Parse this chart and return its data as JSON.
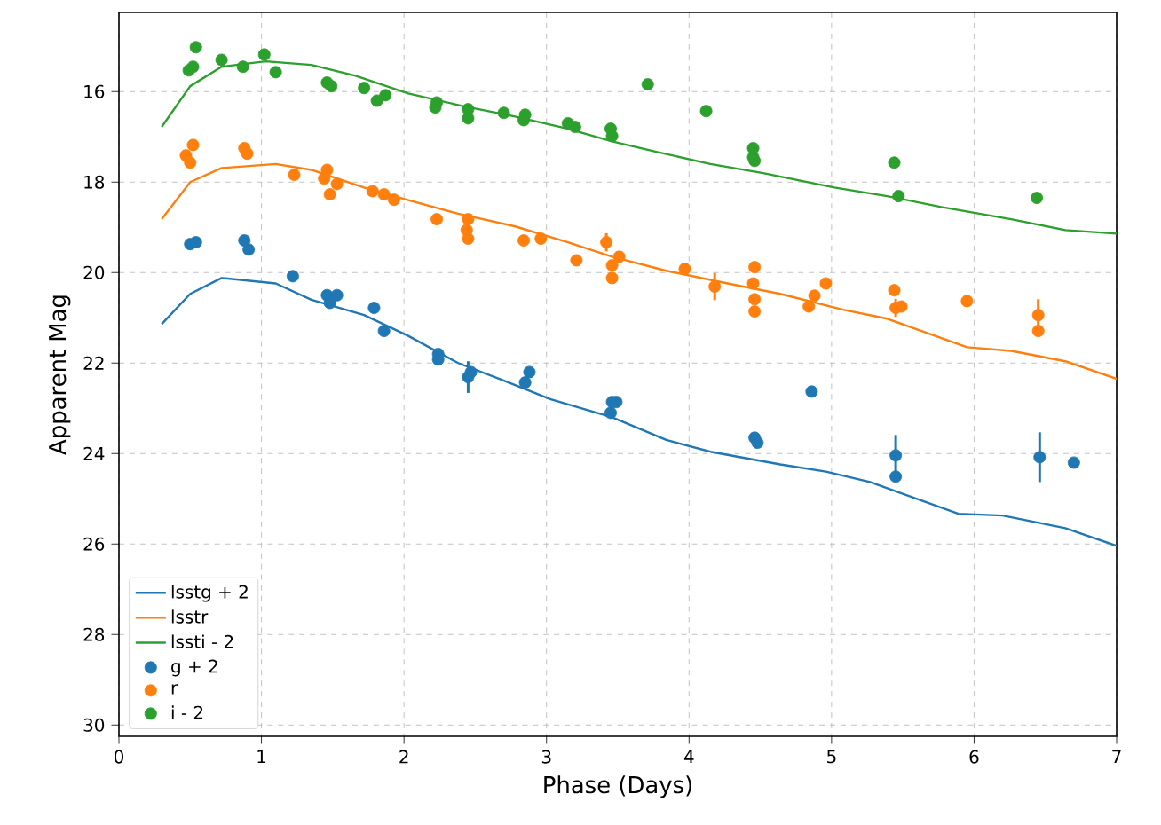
{
  "chart_data": {
    "type": "scatter",
    "xlabel": "Phase (Days)",
    "ylabel": "Apparent Mag",
    "xlim": [
      0,
      7
    ],
    "ylim": [
      30.25,
      14.25
    ],
    "xticks": [
      0,
      1,
      2,
      3,
      4,
      5,
      6,
      7
    ],
    "yticks": [
      16,
      18,
      20,
      22,
      24,
      26,
      28,
      30
    ],
    "grid": true,
    "legend": "bottom left",
    "series": [
      {
        "name": "lsstg + 2",
        "type": "line",
        "marker": "none",
        "color": "#1f77b4",
        "x": [
          0.3,
          0.5,
          0.72,
          1.1,
          1.35,
          1.72,
          2.03,
          2.38,
          2.71,
          3.03,
          3.46,
          3.84,
          4.15,
          4.64,
          4.96,
          5.27,
          5.89,
          6.2,
          6.64,
          7.0
        ],
        "values": [
          21.14,
          20.47,
          20.12,
          20.24,
          20.6,
          20.94,
          21.4,
          22.0,
          22.4,
          22.8,
          23.2,
          23.7,
          23.96,
          24.24,
          24.4,
          24.63,
          25.33,
          25.37,
          25.65,
          26.04
        ]
      },
      {
        "name": "lsstr",
        "type": "line",
        "marker": "none",
        "color": "#ff7f0e",
        "x": [
          0.3,
          0.5,
          0.72,
          1.1,
          1.35,
          1.72,
          2.03,
          2.38,
          2.78,
          3.15,
          3.46,
          3.84,
          4.27,
          4.64,
          5.08,
          5.39,
          5.64,
          5.95,
          6.26,
          6.64,
          7.0
        ],
        "values": [
          18.82,
          18.0,
          17.69,
          17.6,
          17.73,
          18.12,
          18.4,
          18.7,
          18.98,
          19.33,
          19.65,
          19.96,
          20.24,
          20.47,
          20.82,
          21.02,
          21.3,
          21.65,
          21.73,
          21.96,
          22.35
        ]
      },
      {
        "name": "lssti - 2",
        "type": "line",
        "marker": "none",
        "color": "#2ca02c",
        "x": [
          0.3,
          0.5,
          0.72,
          1.03,
          1.35,
          1.66,
          2.03,
          2.4,
          2.78,
          3.15,
          3.46,
          3.77,
          4.15,
          4.52,
          5.02,
          5.39,
          5.77,
          6.26,
          6.64,
          7.0
        ],
        "values": [
          16.78,
          15.88,
          15.45,
          15.33,
          15.41,
          15.65,
          16.04,
          16.31,
          16.55,
          16.82,
          17.1,
          17.33,
          17.6,
          17.8,
          18.12,
          18.31,
          18.55,
          18.82,
          19.06,
          19.14
        ]
      },
      {
        "name": "g + 2",
        "marker": "circle",
        "color": "#1f77b4",
        "x": [
          0.5,
          0.54,
          0.88,
          0.91,
          1.22,
          1.46,
          1.48,
          1.53,
          1.79,
          1.86,
          2.24,
          2.24,
          2.47,
          2.45,
          2.88,
          2.85,
          3.46,
          3.45,
          3.49,
          4.46,
          4.48,
          4.86,
          5.45,
          5.45,
          6.46,
          6.7
        ],
        "values": [
          19.37,
          19.33,
          19.29,
          19.49,
          20.08,
          20.5,
          20.67,
          20.5,
          20.78,
          21.29,
          21.8,
          21.92,
          22.2,
          22.31,
          22.2,
          22.43,
          22.86,
          23.1,
          22.86,
          23.65,
          23.76,
          22.63,
          24.04,
          24.51,
          24.08,
          24.2
        ],
        "errors": [
          null,
          null,
          null,
          null,
          null,
          null,
          null,
          null,
          null,
          null,
          null,
          null,
          null,
          0.35,
          null,
          null,
          null,
          null,
          null,
          null,
          null,
          null,
          0.45,
          null,
          0.55,
          null
        ]
      },
      {
        "name": "r",
        "marker": "circle",
        "color": "#ff7f0e",
        "x": [
          0.47,
          0.5,
          0.52,
          0.88,
          0.9,
          1.23,
          1.46,
          1.44,
          1.48,
          1.53,
          1.78,
          1.86,
          1.93,
          2.23,
          2.45,
          2.44,
          2.45,
          2.84,
          2.96,
          3.21,
          3.42,
          3.46,
          3.46,
          3.51,
          3.97,
          4.18,
          4.46,
          4.45,
          4.46,
          4.46,
          4.84,
          4.88,
          4.96,
          5.44,
          5.45,
          5.49,
          5.95,
          6.45,
          6.45
        ],
        "values": [
          17.41,
          17.57,
          17.18,
          17.25,
          17.37,
          17.84,
          17.73,
          17.92,
          18.27,
          18.04,
          18.2,
          18.27,
          18.39,
          18.82,
          18.82,
          19.06,
          19.25,
          19.29,
          19.25,
          19.73,
          19.33,
          19.84,
          20.12,
          19.65,
          19.92,
          20.31,
          19.88,
          20.24,
          20.59,
          20.86,
          20.75,
          20.51,
          20.24,
          20.39,
          20.78,
          20.75,
          20.63,
          20.94,
          21.29
        ],
        "errors": [
          null,
          null,
          null,
          null,
          null,
          null,
          null,
          null,
          null,
          null,
          null,
          null,
          null,
          null,
          null,
          null,
          null,
          null,
          null,
          null,
          0.2,
          null,
          null,
          null,
          null,
          0.3,
          null,
          null,
          null,
          null,
          null,
          null,
          null,
          null,
          0.2,
          null,
          null,
          0.35,
          null
        ]
      },
      {
        "name": "i - 2",
        "marker": "circle",
        "color": "#2ca02c",
        "x": [
          0.49,
          0.52,
          0.54,
          0.72,
          0.87,
          1.02,
          1.1,
          1.46,
          1.49,
          1.72,
          1.81,
          1.87,
          2.22,
          2.23,
          2.45,
          2.45,
          2.7,
          2.84,
          2.85,
          3.15,
          3.2,
          3.45,
          3.46,
          3.71,
          4.12,
          4.45,
          4.45,
          4.46,
          5.44,
          5.47,
          6.44
        ],
        "values": [
          15.53,
          15.45,
          15.02,
          15.3,
          15.45,
          15.18,
          15.57,
          15.8,
          15.88,
          15.92,
          16.2,
          16.08,
          16.35,
          16.24,
          16.39,
          16.59,
          16.47,
          16.63,
          16.51,
          16.7,
          16.78,
          16.82,
          16.98,
          15.84,
          16.43,
          17.25,
          17.45,
          17.53,
          17.57,
          18.31,
          18.35
        ]
      }
    ]
  }
}
